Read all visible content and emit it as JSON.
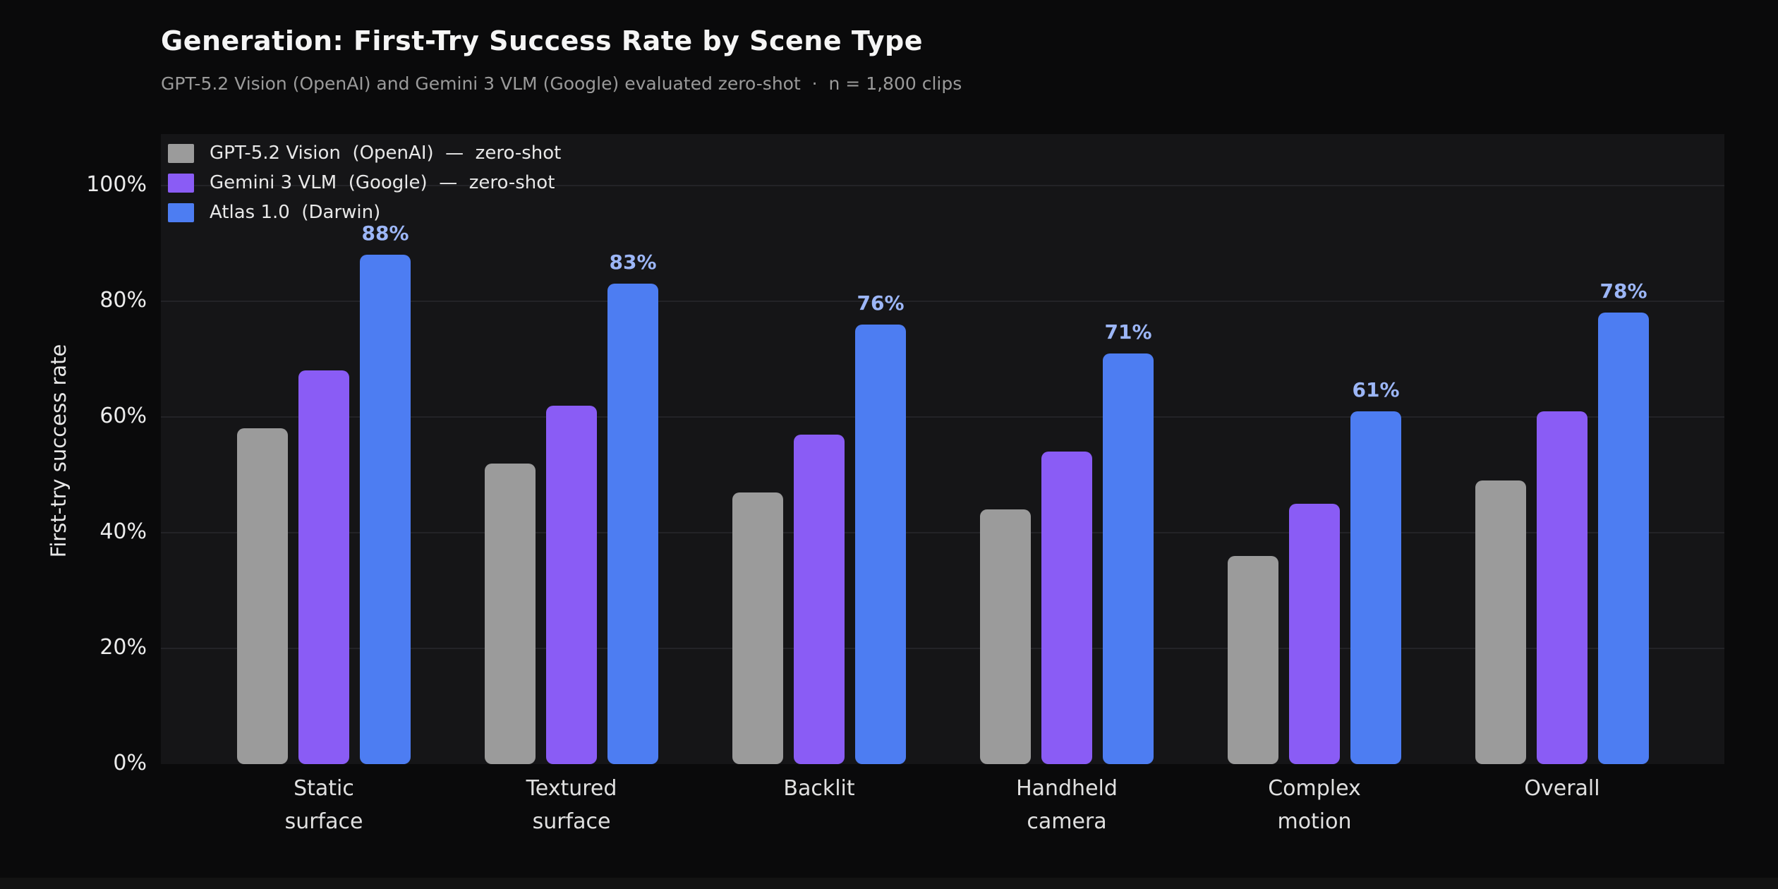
{
  "header": {
    "title": "Generation: First-Try Success Rate by Scene Type",
    "subtitle": "GPT-5.2 Vision (OpenAI) and Gemini 3 VLM (Google) evaluated zero-shot  ·  n = 1,800 clips"
  },
  "axes": {
    "y_label": "First-try success rate",
    "y_tick_labels": [
      "0%",
      "20%",
      "40%",
      "60%",
      "80%",
      "100%"
    ],
    "y_tick_values": [
      0,
      20,
      40,
      60,
      80,
      100
    ]
  },
  "chart_data": {
    "type": "bar",
    "title": "Generation: First-Try Success Rate by Scene Type",
    "subtitle": "GPT-5.2 Vision (OpenAI) and Gemini 3 VLM (Google) evaluated zero-shot · n = 1,800 clips",
    "categories": [
      "Static\nsurface",
      "Textured\nsurface",
      "Backlit",
      "Handheld\ncamera",
      "Complex\nmotion",
      "Overall"
    ],
    "series": [
      {
        "name": "GPT-5.2 Vision  (OpenAI)  —  zero-shot",
        "color": "#9b9b9b",
        "values": [
          58,
          52,
          47,
          44,
          36,
          49
        ],
        "value_labels": false
      },
      {
        "name": "Gemini 3 VLM  (Google)  —  zero-shot",
        "color": "#8a5cf5",
        "values": [
          68,
          62,
          57,
          54,
          45,
          61
        ],
        "value_labels": false
      },
      {
        "name": "Atlas 1.0  (Darwin)",
        "color": "#4d7df2",
        "values": [
          88,
          83,
          76,
          71,
          61,
          78
        ],
        "value_labels": true
      }
    ],
    "value_label_color": "#9cb6f7",
    "value_label_format": "{v}%",
    "xlabel": "",
    "ylabel": "First-try success rate",
    "ylim": [
      0,
      100
    ],
    "grid": true,
    "legend_position": "upper-left",
    "background": "#0a0a0b",
    "plot_background": "#151517",
    "gridline_color": "#232327"
  }
}
